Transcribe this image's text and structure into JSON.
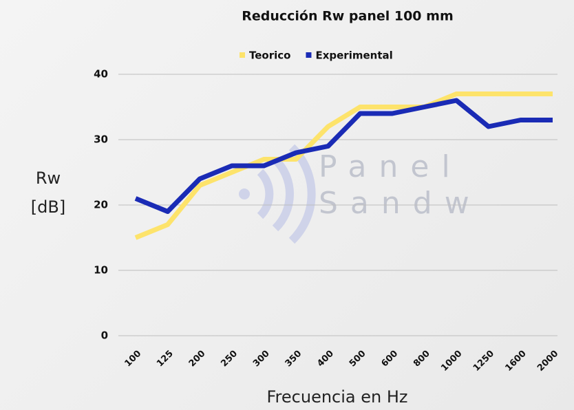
{
  "chart_data": {
    "type": "line",
    "title": "Reducción Rw panel 100 mm",
    "categories": [
      "100",
      "125",
      "200",
      "250",
      "300",
      "350",
      "400",
      "500",
      "600",
      "800",
      "1000",
      "1250",
      "1600",
      "2000"
    ],
    "series": [
      {
        "name": "Teorico",
        "color": "#fde36b",
        "values": [
          15,
          17,
          23,
          25,
          27,
          27,
          32,
          35,
          35,
          35,
          37,
          37,
          37,
          37
        ]
      },
      {
        "name": "Experimental",
        "color": "#1a2bb5",
        "values": [
          21,
          19,
          24,
          26,
          26,
          28,
          29,
          34,
          34,
          35,
          36,
          32,
          33,
          33
        ]
      }
    ],
    "ylim": [
      0,
      40
    ],
    "yticks": [
      0,
      10,
      20,
      30,
      40
    ],
    "grid": true,
    "legend": "top",
    "x_label": "Frecuencia en Hz",
    "y_label": "Rw [dB]",
    "watermark": [
      "Panel",
      "Sandw"
    ]
  }
}
